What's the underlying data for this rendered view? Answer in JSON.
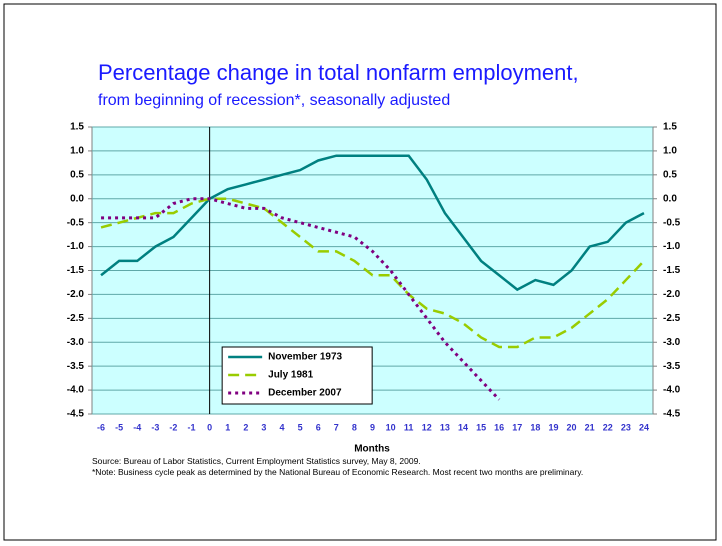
{
  "chart_data": {
    "type": "line",
    "title": "Percentage change in total nonfarm employment,",
    "subtitle": "from beginning of recession*, seasonally adjusted",
    "xlabel": "Months",
    "notes": [
      "Source:  Bureau of Labor Statistics, Current Employment Statistics survey, May 8, 2009.",
      "*Note: Business cycle peak as determined by the National Bureau of Economic Research.  Most recent two months are preliminary."
    ],
    "x": [
      -6,
      -5,
      -4,
      -3,
      -2,
      -1,
      0,
      1,
      2,
      3,
      4,
      5,
      6,
      7,
      8,
      9,
      10,
      11,
      12,
      13,
      14,
      15,
      16,
      17,
      18,
      19,
      20,
      21,
      22,
      23,
      24
    ],
    "xlim": [
      -6.5,
      24.5
    ],
    "xticks": [
      -6,
      -5,
      -4,
      -3,
      -2,
      -1,
      0,
      1,
      2,
      3,
      4,
      5,
      6,
      7,
      8,
      9,
      10,
      11,
      12,
      13,
      14,
      15,
      16,
      17,
      18,
      19,
      20,
      21,
      22,
      23,
      24
    ],
    "ylim": [
      -4.5,
      1.5
    ],
    "yticks": [
      1.5,
      {
        "value": 1,
        "label": "1.0"
      },
      0.5,
      {
        "value": 0,
        "label": "0.0"
      },
      -0.5,
      {
        "value": -1,
        "label": "-1.0"
      },
      -1.5,
      {
        "value": -2,
        "label": "-2.0"
      },
      -2.5,
      {
        "value": -3,
        "label": "-3.0"
      },
      -3.5,
      {
        "value": -4,
        "label": "-4.0"
      },
      -4.5
    ],
    "y2lim": [
      -4.5,
      1.5
    ],
    "y2ticks": [
      1.5,
      {
        "value": 1,
        "label": "1.0"
      },
      0.5,
      {
        "value": 0,
        "label": "0.0"
      },
      -0.5,
      {
        "value": -1,
        "label": "-1.0"
      },
      -1.5,
      {
        "value": -2,
        "label": "-2.0"
      },
      -2.5,
      {
        "value": -3,
        "label": "-3.0"
      },
      -3.5,
      {
        "value": -4,
        "label": "-4.0"
      },
      -4.5
    ],
    "grid": true,
    "legend": "lower center",
    "series": [
      {
        "name": "November 1973",
        "color": "#008080",
        "dash": "solid",
        "values": [
          -1.6,
          -1.3,
          -1.3,
          -1.0,
          -0.8,
          -0.4,
          0,
          0.2,
          0.3,
          0.4,
          0.5,
          0.6,
          0.8,
          0.9,
          0.9,
          0.9,
          0.9,
          0.9,
          0.4,
          -0.3,
          -0.8,
          -1.3,
          -1.6,
          -1.9,
          -1.7,
          -1.8,
          -1.5,
          -1.0,
          -0.9,
          -0.5,
          -0.3
        ]
      },
      {
        "name": "July 1981",
        "color": "#99cc00",
        "dash": "dashed",
        "values": [
          -0.6,
          -0.5,
          -0.4,
          -0.3,
          -0.3,
          -0.1,
          0,
          0,
          -0.1,
          -0.2,
          -0.5,
          -0.8,
          -1.1,
          -1.1,
          -1.3,
          -1.6,
          -1.6,
          -2.0,
          -2.3,
          -2.4,
          -2.6,
          -2.9,
          -3.1,
          -3.1,
          -2.9,
          -2.9,
          -2.7,
          -2.4,
          -2.1,
          -1.7,
          -1.3
        ]
      },
      {
        "name": "December 2007",
        "color": "#800080",
        "dash": "dotted",
        "values": [
          -0.4,
          -0.4,
          -0.4,
          -0.4,
          -0.1,
          0,
          0,
          -0.1,
          -0.2,
          -0.2,
          -0.4,
          -0.5,
          -0.6,
          -0.7,
          -0.8,
          -1.1,
          -1.5,
          -2.0,
          -2.5,
          -3.0,
          -3.4,
          -3.8,
          -4.2,
          null,
          null,
          null,
          null,
          null,
          null,
          null,
          null
        ]
      }
    ]
  }
}
